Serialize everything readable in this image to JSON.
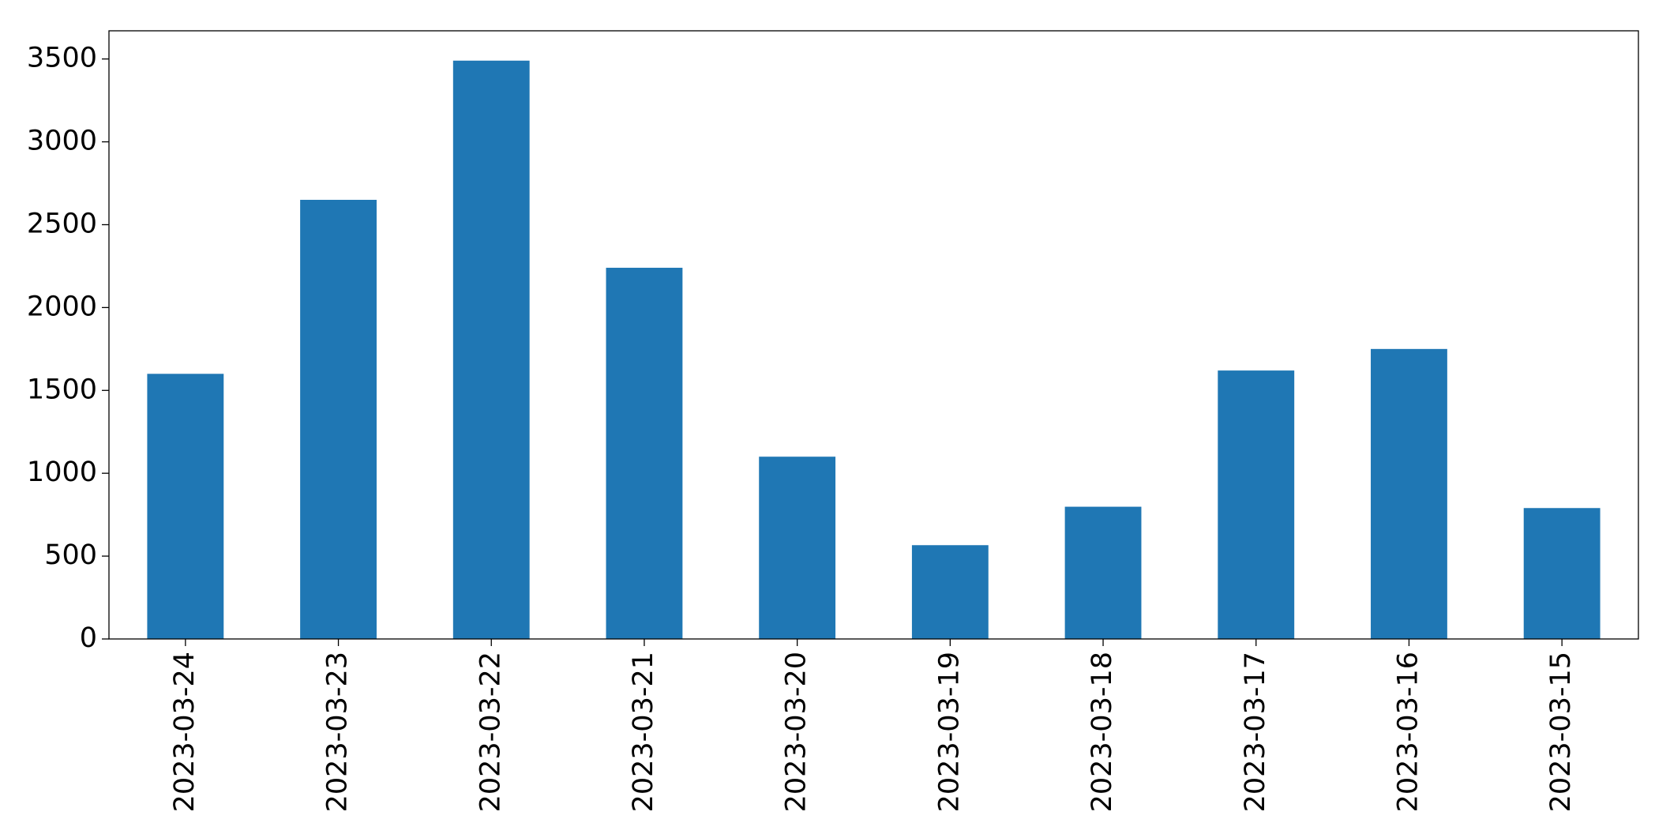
{
  "chart_data": {
    "type": "bar",
    "categories": [
      "2023-03-24",
      "2023-03-23",
      "2023-03-22",
      "2023-03-21",
      "2023-03-20",
      "2023-03-19",
      "2023-03-18",
      "2023-03-17",
      "2023-03-16",
      "2023-03-15"
    ],
    "values": [
      1600,
      2650,
      3490,
      2240,
      1100,
      566,
      798,
      1620,
      1750,
      790
    ],
    "color": "#1f77b4",
    "ylim": [
      0,
      3670
    ],
    "yticks": [
      0,
      500,
      1000,
      1500,
      2000,
      2500,
      3000,
      3500
    ],
    "grid": false
  }
}
